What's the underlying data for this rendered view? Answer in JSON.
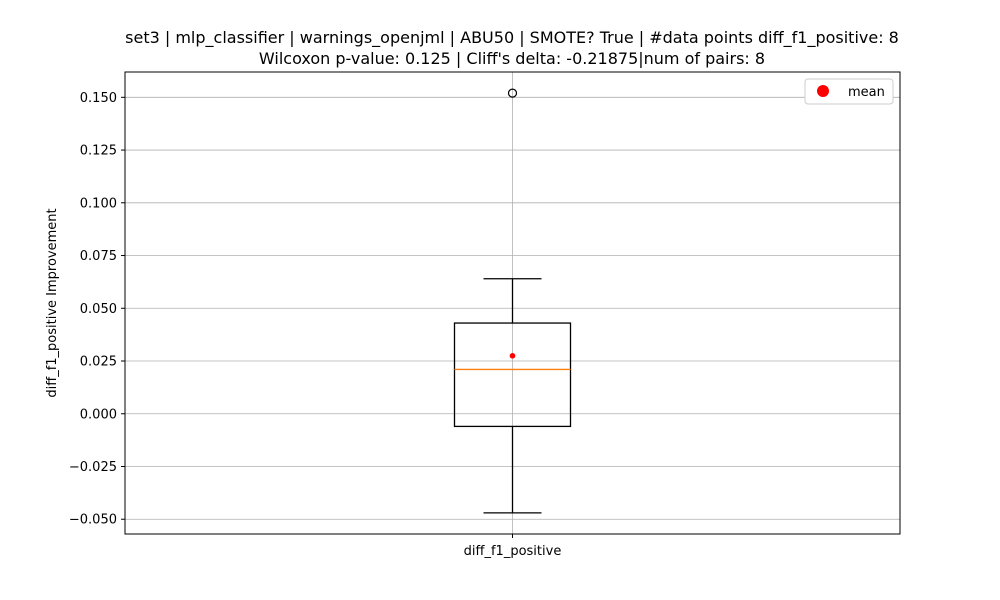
{
  "chart_data": {
    "type": "box",
    "title_line1": "set3 | mlp_classifier | warnings_openjml | ABU50 | SMOTE? True | #data points diff_f1_positive: 8",
    "title_line2": "Wilcoxon p-value: 0.125 | Cliff's delta: -0.21875|num of pairs: 8",
    "xlabel": "",
    "ylabel": "diff_f1_positive Improvement",
    "categories": [
      "diff_f1_positive"
    ],
    "ylim": [
      -0.057,
      0.162
    ],
    "yticks": [
      -0.05,
      -0.025,
      0.0,
      0.025,
      0.05,
      0.075,
      0.1,
      0.125,
      0.15
    ],
    "ytick_labels": [
      "−0.050",
      "−0.025",
      "0.000",
      "0.025",
      "0.050",
      "0.075",
      "0.100",
      "0.125",
      "0.150"
    ],
    "grid": true,
    "legend": {
      "position": "top-right",
      "entries": [
        {
          "label": "mean",
          "marker": "circle",
          "color": "#ff0000"
        }
      ]
    },
    "box": {
      "whisker_low": -0.047,
      "q1": -0.006,
      "median": 0.021,
      "q3": 0.043,
      "whisker_high": 0.064,
      "mean": 0.0275,
      "outliers": [
        0.152
      ]
    },
    "colors": {
      "box": "#000000",
      "median": "#ff7f0e",
      "mean": "#ff0000",
      "grid": "#b0b0b0"
    }
  }
}
